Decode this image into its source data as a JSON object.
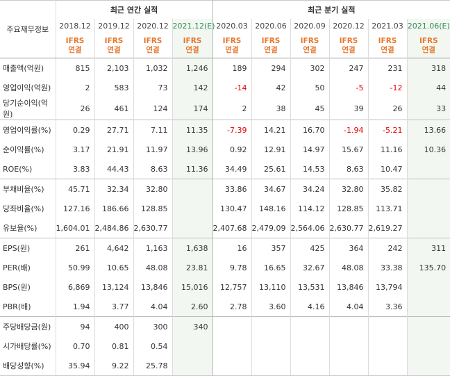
{
  "header": {
    "corner_label": "주요재무정보",
    "annual_group": "최근 연간 실적",
    "quarter_group": "최근 분기 실적",
    "periods": [
      "2018.12",
      "2019.12",
      "2020.12",
      "2021.12(E)",
      "2020.03",
      "2020.06",
      "2020.09",
      "2020.12",
      "2021.03",
      "2021.06(E)"
    ],
    "ifrs_top": "IFRS",
    "ifrs_bottom": "연결"
  },
  "rows": [
    {
      "label": "매출액(억원)",
      "values": [
        "815",
        "2,103",
        "1,032",
        "1,246",
        "189",
        "294",
        "302",
        "247",
        "231",
        "318"
      ]
    },
    {
      "label": "영업이익(억원)",
      "values": [
        "2",
        "583",
        "73",
        "142",
        "-14",
        "42",
        "50",
        "-5",
        "-12",
        "44"
      ]
    },
    {
      "label": "당기순이익(억원)",
      "values": [
        "26",
        "461",
        "124",
        "174",
        "2",
        "38",
        "45",
        "39",
        "26",
        "33"
      ]
    },
    {
      "label": "영업이익률(%)",
      "values": [
        "0.29",
        "27.71",
        "7.11",
        "11.35",
        "-7.39",
        "14.21",
        "16.70",
        "-1.94",
        "-5.21",
        "13.66"
      ]
    },
    {
      "label": "순이익률(%)",
      "values": [
        "3.17",
        "21.91",
        "11.97",
        "13.96",
        "0.92",
        "12.91",
        "14.97",
        "15.67",
        "11.16",
        "10.36"
      ]
    },
    {
      "label": "ROE(%)",
      "values": [
        "3.83",
        "44.43",
        "8.63",
        "11.36",
        "34.49",
        "25.61",
        "14.53",
        "8.63",
        "10.47",
        ""
      ]
    },
    {
      "label": "부채비율(%)",
      "values": [
        "45.71",
        "32.34",
        "32.80",
        "",
        "33.86",
        "34.67",
        "34.24",
        "32.80",
        "35.82",
        ""
      ]
    },
    {
      "label": "당좌비율(%)",
      "values": [
        "127.16",
        "186.66",
        "128.85",
        "",
        "130.47",
        "148.16",
        "114.12",
        "128.85",
        "113.71",
        ""
      ]
    },
    {
      "label": "유보율(%)",
      "values": [
        "1,604.01",
        "2,484.86",
        "2,630.77",
        "",
        "2,407.68",
        "2,479.09",
        "2,564.06",
        "2,630.77",
        "2,619.27",
        ""
      ]
    },
    {
      "label": "EPS(원)",
      "values": [
        "261",
        "4,642",
        "1,163",
        "1,638",
        "16",
        "357",
        "425",
        "364",
        "242",
        "311"
      ]
    },
    {
      "label": "PER(배)",
      "values": [
        "50.99",
        "10.65",
        "48.08",
        "23.81",
        "9.78",
        "16.65",
        "32.67",
        "48.08",
        "33.38",
        "135.70"
      ]
    },
    {
      "label": "BPS(원)",
      "values": [
        "6,869",
        "13,124",
        "13,846",
        "15,016",
        "12,757",
        "13,110",
        "13,531",
        "13,846",
        "13,794",
        ""
      ]
    },
    {
      "label": "PBR(배)",
      "values": [
        "1.94",
        "3.77",
        "4.04",
        "2.60",
        "2.78",
        "3.60",
        "4.16",
        "4.04",
        "3.36",
        ""
      ]
    },
    {
      "label": "주당배당금(원)",
      "values": [
        "94",
        "400",
        "300",
        "340",
        "",
        "",
        "",
        "",
        "",
        ""
      ]
    },
    {
      "label": "시가배당률(%)",
      "values": [
        "0.70",
        "0.81",
        "0.54",
        "",
        "",
        "",
        "",
        "",
        "",
        ""
      ]
    },
    {
      "label": "배당성향(%)",
      "values": [
        "35.94",
        "9.22",
        "25.78",
        "",
        "",
        "",
        "",
        "",
        "",
        ""
      ]
    }
  ],
  "colors": {
    "negative": "#e60000",
    "ifrs": "#e8762c",
    "estimate_bg": "#f2f8f1"
  }
}
